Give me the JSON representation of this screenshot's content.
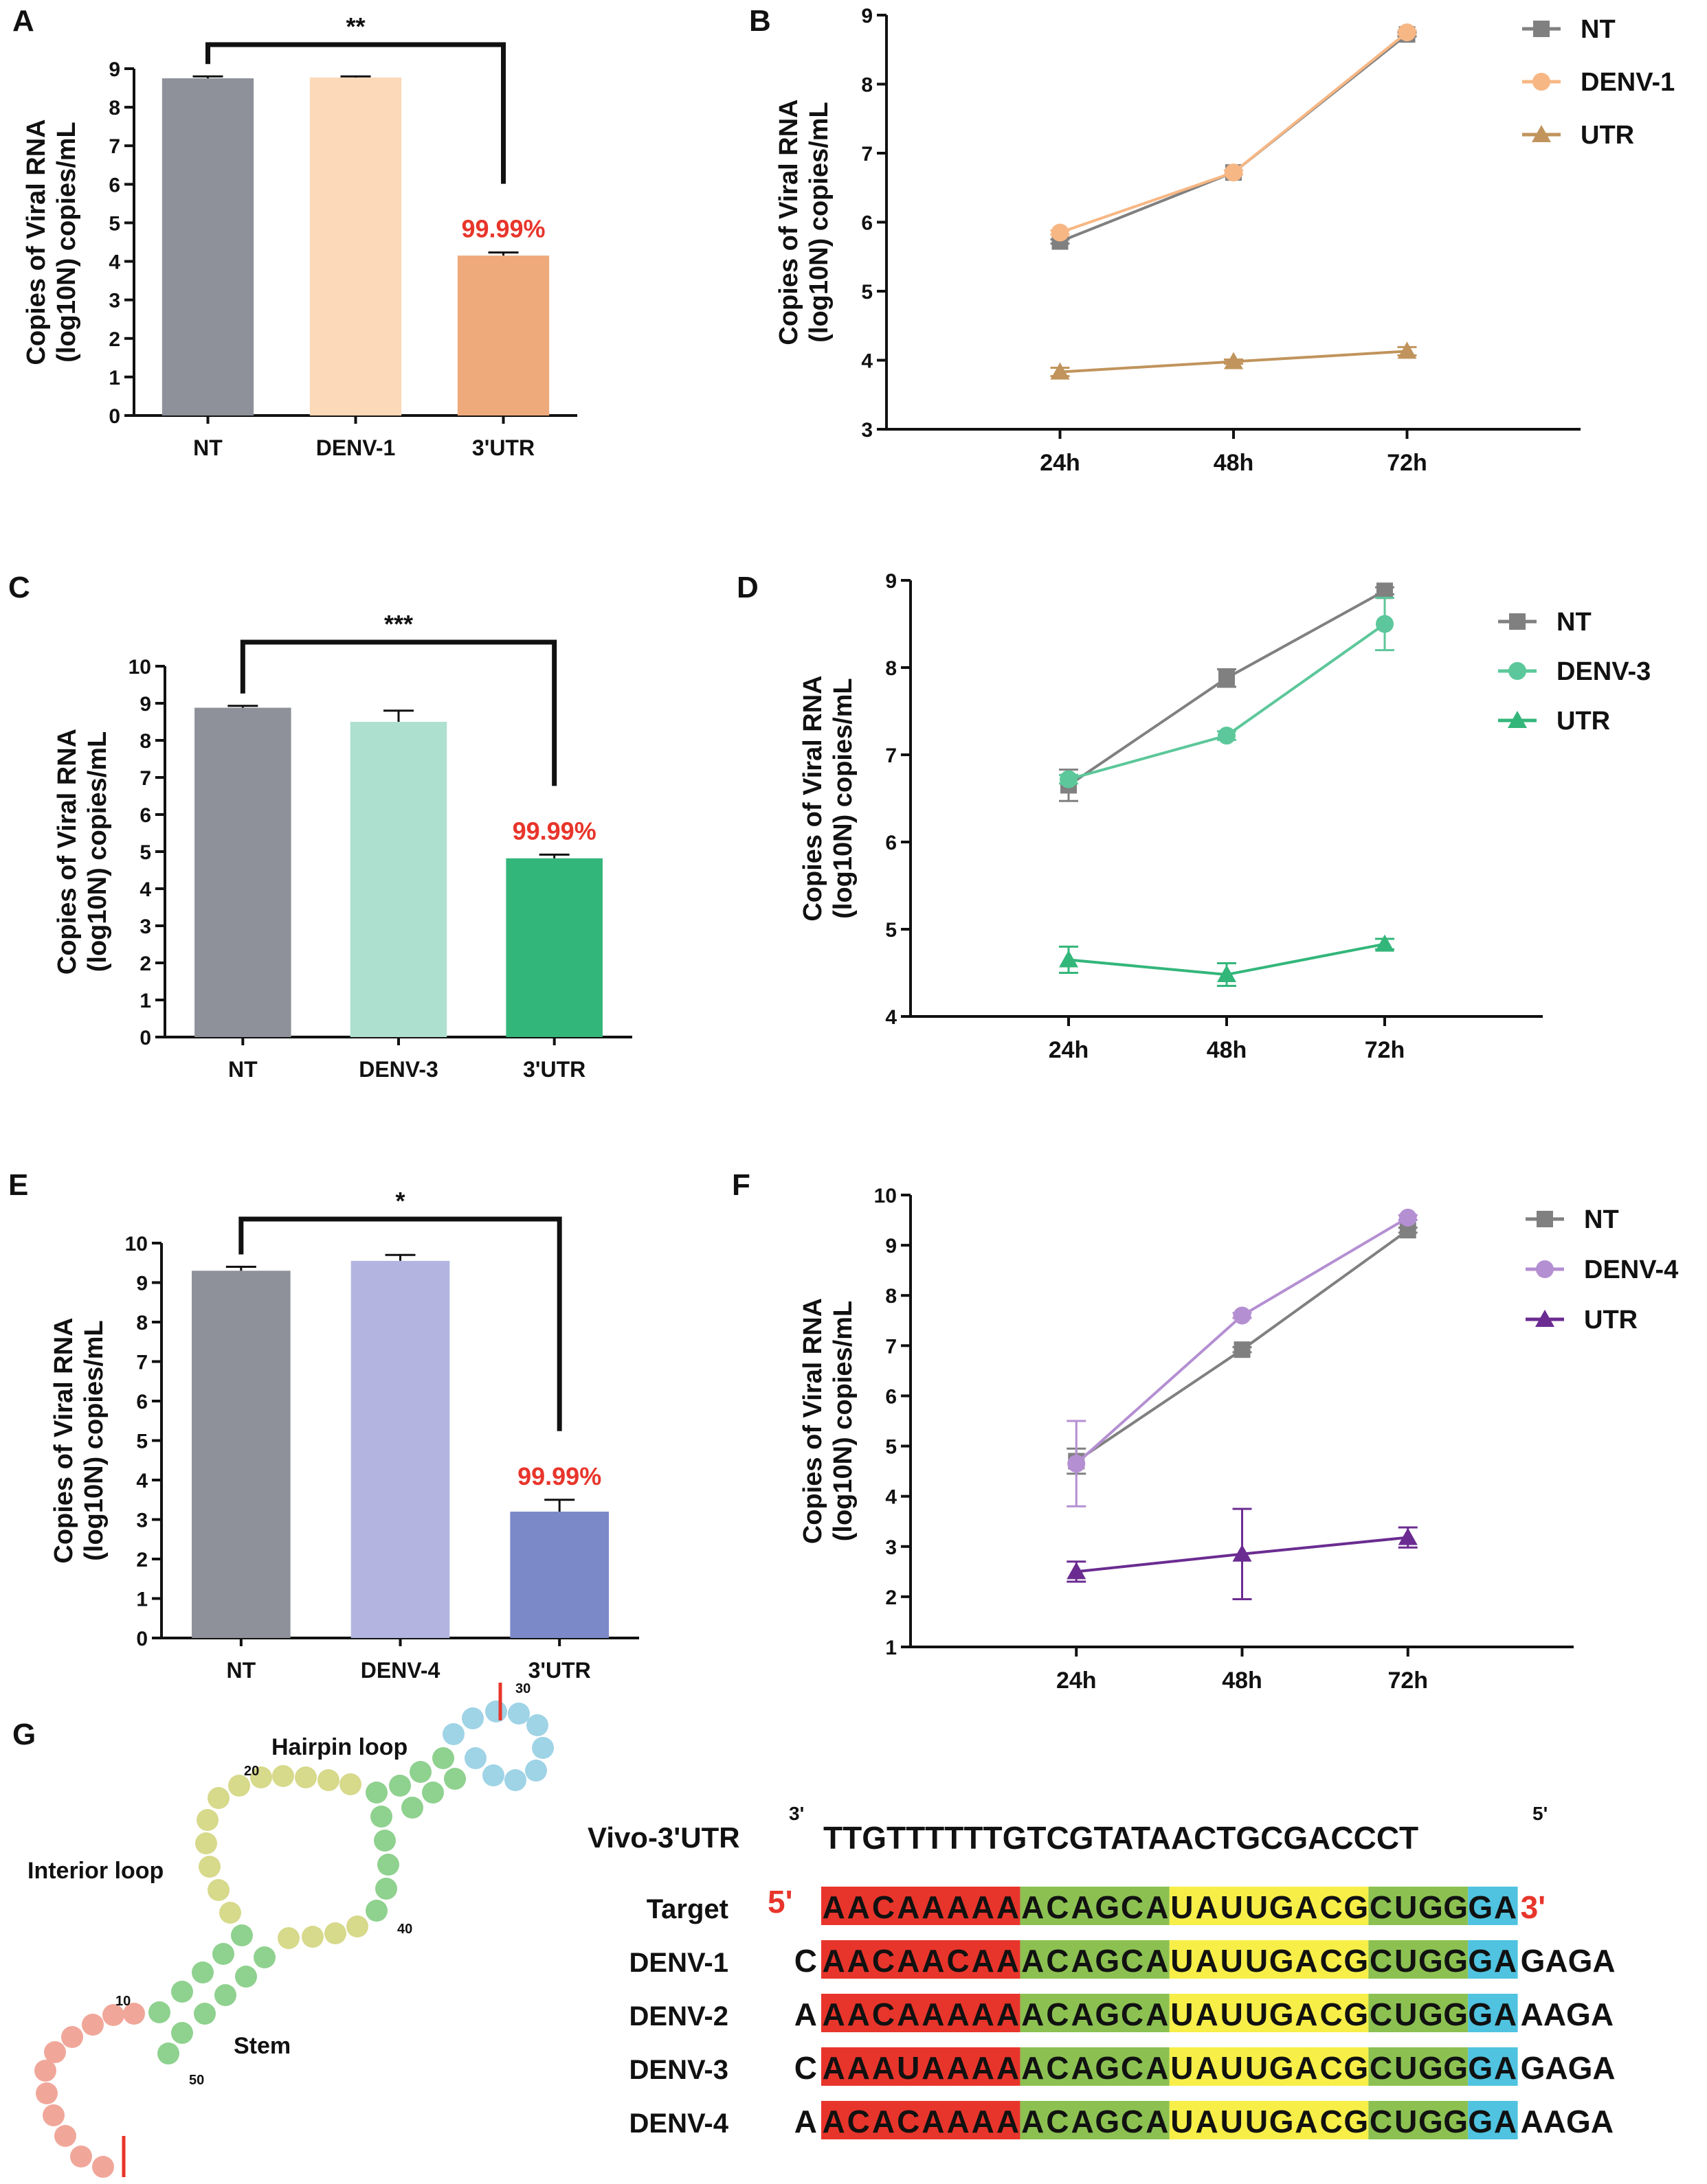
{
  "chart_data": [
    {
      "panel": "A",
      "type": "bar",
      "categories": [
        "NT",
        "DENV-1",
        "3'UTR"
      ],
      "values": [
        8.75,
        8.77,
        4.15
      ],
      "errors": [
        0.05,
        0.03,
        0.08
      ],
      "colors": [
        "#8e9199",
        "#fcd9b9",
        "#eeaa7b"
      ],
      "ylabel_line1": "Copies of Viral RNA",
      "ylabel_line2": "(log10N) copies/mL",
      "ylim": [
        0,
        9
      ],
      "yticks": [
        "0",
        "1",
        "2",
        "3",
        "4",
        "5",
        "6",
        "7",
        "8",
        "9"
      ],
      "significance": "**",
      "percent_label": "99.99%"
    },
    {
      "panel": "B",
      "type": "line",
      "x": [
        "24h",
        "48h",
        "72h"
      ],
      "series": [
        {
          "name": "NT",
          "values": [
            5.72,
            6.72,
            8.72
          ],
          "errors": [
            0.03,
            0.03,
            0.03
          ],
          "color": "#808080",
          "marker": "square"
        },
        {
          "name": "DENV-1",
          "values": [
            5.85,
            6.72,
            8.75
          ],
          "errors": [
            0.03,
            0.03,
            0.03
          ],
          "color": "#f7b784",
          "marker": "circle"
        },
        {
          "name": "UTR",
          "values": [
            3.83,
            3.98,
            4.13
          ],
          "errors": [
            0.06,
            0.03,
            0.06
          ],
          "color": "#c0945c",
          "marker": "triangle"
        }
      ],
      "ylabel_line1": "Copies of Viral RNA",
      "ylabel_line2": "(log10N) copies/mL",
      "ylim": [
        3,
        9
      ],
      "yticks": [
        "3",
        "4",
        "5",
        "6",
        "7",
        "8",
        "9"
      ]
    },
    {
      "panel": "C",
      "type": "bar",
      "categories": [
        "NT",
        "DENV-3",
        "3'UTR"
      ],
      "values": [
        8.88,
        8.5,
        4.82
      ],
      "errors": [
        0.05,
        0.3,
        0.1
      ],
      "colors": [
        "#8e9199",
        "#aee0cf",
        "#33b67a"
      ],
      "ylabel_line1": "Copies of Viral RNA",
      "ylabel_line2": "(log10N) copies/mL",
      "ylim": [
        0,
        10
      ],
      "yticks": [
        "0",
        "1",
        "2",
        "3",
        "4",
        "5",
        "6",
        "7",
        "8",
        "9",
        "10"
      ],
      "significance": "***",
      "percent_label": "99.99%"
    },
    {
      "panel": "D",
      "type": "line",
      "x": [
        "24h",
        "48h",
        "72h"
      ],
      "series": [
        {
          "name": "NT",
          "values": [
            6.65,
            7.88,
            8.88
          ],
          "errors": [
            0.18,
            0.1,
            0.04
          ],
          "color": "#808080",
          "marker": "square"
        },
        {
          "name": "DENV-3",
          "values": [
            6.72,
            7.22,
            8.5
          ],
          "errors": [
            0.05,
            0.05,
            0.3
          ],
          "color": "#5cc79a",
          "marker": "circle"
        },
        {
          "name": "UTR",
          "values": [
            4.65,
            4.48,
            4.83
          ],
          "errors": [
            0.15,
            0.13,
            0.06
          ],
          "color": "#33b67a",
          "marker": "triangle"
        }
      ],
      "ylabel_line1": "Copies of Viral RNA",
      "ylabel_line2": "(log10N) copies/mL",
      "ylim": [
        4,
        9
      ],
      "yticks": [
        "4",
        "5",
        "6",
        "7",
        "8",
        "9"
      ]
    },
    {
      "panel": "E",
      "type": "bar",
      "categories": [
        "NT",
        "DENV-4",
        "3'UTR"
      ],
      "values": [
        9.3,
        9.55,
        3.2
      ],
      "errors": [
        0.1,
        0.15,
        0.3
      ],
      "colors": [
        "#8e9199",
        "#b3b5e0",
        "#7c89c8"
      ],
      "ylabel_line1": "Copies of Viral RNA",
      "ylabel_line2": "(log10N) copies/mL",
      "ylim": [
        0,
        10
      ],
      "yticks": [
        "0",
        "1",
        "2",
        "3",
        "4",
        "5",
        "6",
        "7",
        "8",
        "9",
        "10"
      ],
      "significance": "*",
      "percent_label": "99.99%"
    },
    {
      "panel": "F",
      "type": "line",
      "x": [
        "24h",
        "48h",
        "72h"
      ],
      "series": [
        {
          "name": "NT",
          "values": [
            4.7,
            6.92,
            9.3
          ],
          "errors": [
            0.25,
            0.05,
            0.05
          ],
          "color": "#808080",
          "marker": "square"
        },
        {
          "name": "DENV-4",
          "values": [
            4.65,
            7.6,
            9.55
          ],
          "errors": [
            0.85,
            0.05,
            0.05
          ],
          "color": "#b48fd2",
          "marker": "circle"
        },
        {
          "name": "UTR",
          "values": [
            2.5,
            2.85,
            3.18
          ],
          "errors": [
            0.2,
            0.9,
            0.2
          ],
          "color": "#6b2c91",
          "marker": "triangle"
        }
      ],
      "ylabel_line1": "Copies of Viral RNA",
      "ylabel_line2": "(log10N) copies/mL",
      "ylim": [
        1,
        10
      ],
      "yticks": [
        "1",
        "2",
        "3",
        "4",
        "5",
        "6",
        "7",
        "8",
        "9",
        "10"
      ]
    }
  ],
  "panel_g": {
    "label": "G",
    "structure_labels": {
      "hairpin": "Hairpin loop",
      "interior": "Interior loop",
      "stem": "Stem",
      "n10": "10",
      "n20": "20",
      "n30": "30",
      "n40": "40",
      "n50": "50"
    },
    "vivo_label": "Vivo-3'UTR",
    "vivo_sequence": "TTGTTTTTTGTCGTATAACTGCGACCCT",
    "vivo_left_prime": "3'",
    "vivo_right_prime": "5'",
    "target_label": "Target",
    "target_left_prime": "5'",
    "target_right_prime": "3'",
    "alignment": [
      {
        "label": "Target",
        "prefix": "",
        "core": "AACAAAAAACAGCAUAUUGACGCUGGGA",
        "suffix": ""
      },
      {
        "label": "DENV-1",
        "prefix": "C",
        "core": "AACAACAAACAGCAUAUUGACGCUGGGA",
        "suffix": "GAGA"
      },
      {
        "label": "DENV-2",
        "prefix": "A",
        "core": "AACAAAAAACAGCAUAUUGACGCUGGGA",
        "suffix": "AAGA"
      },
      {
        "label": "DENV-3",
        "prefix": "C",
        "core": "AAAUAAAAACAGCAUAUUGACGCUGGGA",
        "suffix": "GAGA"
      },
      {
        "label": "DENV-4",
        "prefix": "A",
        "core": "ACACAAAAACAGCAUAUUGACGCUGGGA",
        "suffix": "AAGA"
      }
    ],
    "colors": {
      "red": "#e8352b",
      "green": "#8cc152",
      "yellow": "#f7ef48",
      "cyan": "#4fc3e0"
    }
  }
}
